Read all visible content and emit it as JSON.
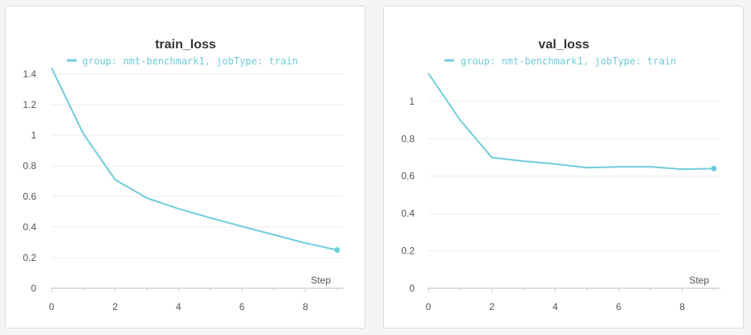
{
  "legend_label": "group: nmt-benchmark1, jobType: train",
  "series_color": "#6fccdc",
  "chart_data": [
    {
      "type": "line",
      "title": "train_loss",
      "xlabel": "Step",
      "ylabel": "",
      "xlim": [
        0,
        9
      ],
      "ylim": [
        0,
        1.4
      ],
      "xticks": [
        "0",
        "2",
        "4",
        "6",
        "8"
      ],
      "yticks": [
        "0",
        "0.2",
        "0.4",
        "0.6",
        "0.8",
        "1",
        "1.2",
        "1.4"
      ],
      "grid": true,
      "legend": "top",
      "series": [
        {
          "name": "group: nmt-benchmark1, jobType: train",
          "x": [
            0,
            1,
            2,
            3,
            4,
            5,
            6,
            7,
            8,
            9
          ],
          "y": [
            1.44,
            1.01,
            0.71,
            0.59,
            0.52,
            0.46,
            0.405,
            0.35,
            0.295,
            0.25
          ]
        }
      ]
    },
    {
      "type": "line",
      "title": "val_loss",
      "xlabel": "Step",
      "ylabel": "",
      "xlim": [
        0,
        9
      ],
      "ylim": [
        0,
        1.15
      ],
      "xticks": [
        "0",
        "2",
        "4",
        "6",
        "8"
      ],
      "yticks": [
        "0",
        "0.2",
        "0.4",
        "0.6",
        "0.8",
        "1"
      ],
      "grid": true,
      "legend": "top",
      "series": [
        {
          "name": "group: nmt-benchmark1, jobType: train",
          "x": [
            0,
            1,
            2,
            3,
            4,
            5,
            6,
            7,
            8,
            9
          ],
          "y": [
            1.15,
            0.9,
            0.7,
            0.68,
            0.665,
            0.645,
            0.65,
            0.65,
            0.637,
            0.64
          ]
        }
      ]
    }
  ]
}
